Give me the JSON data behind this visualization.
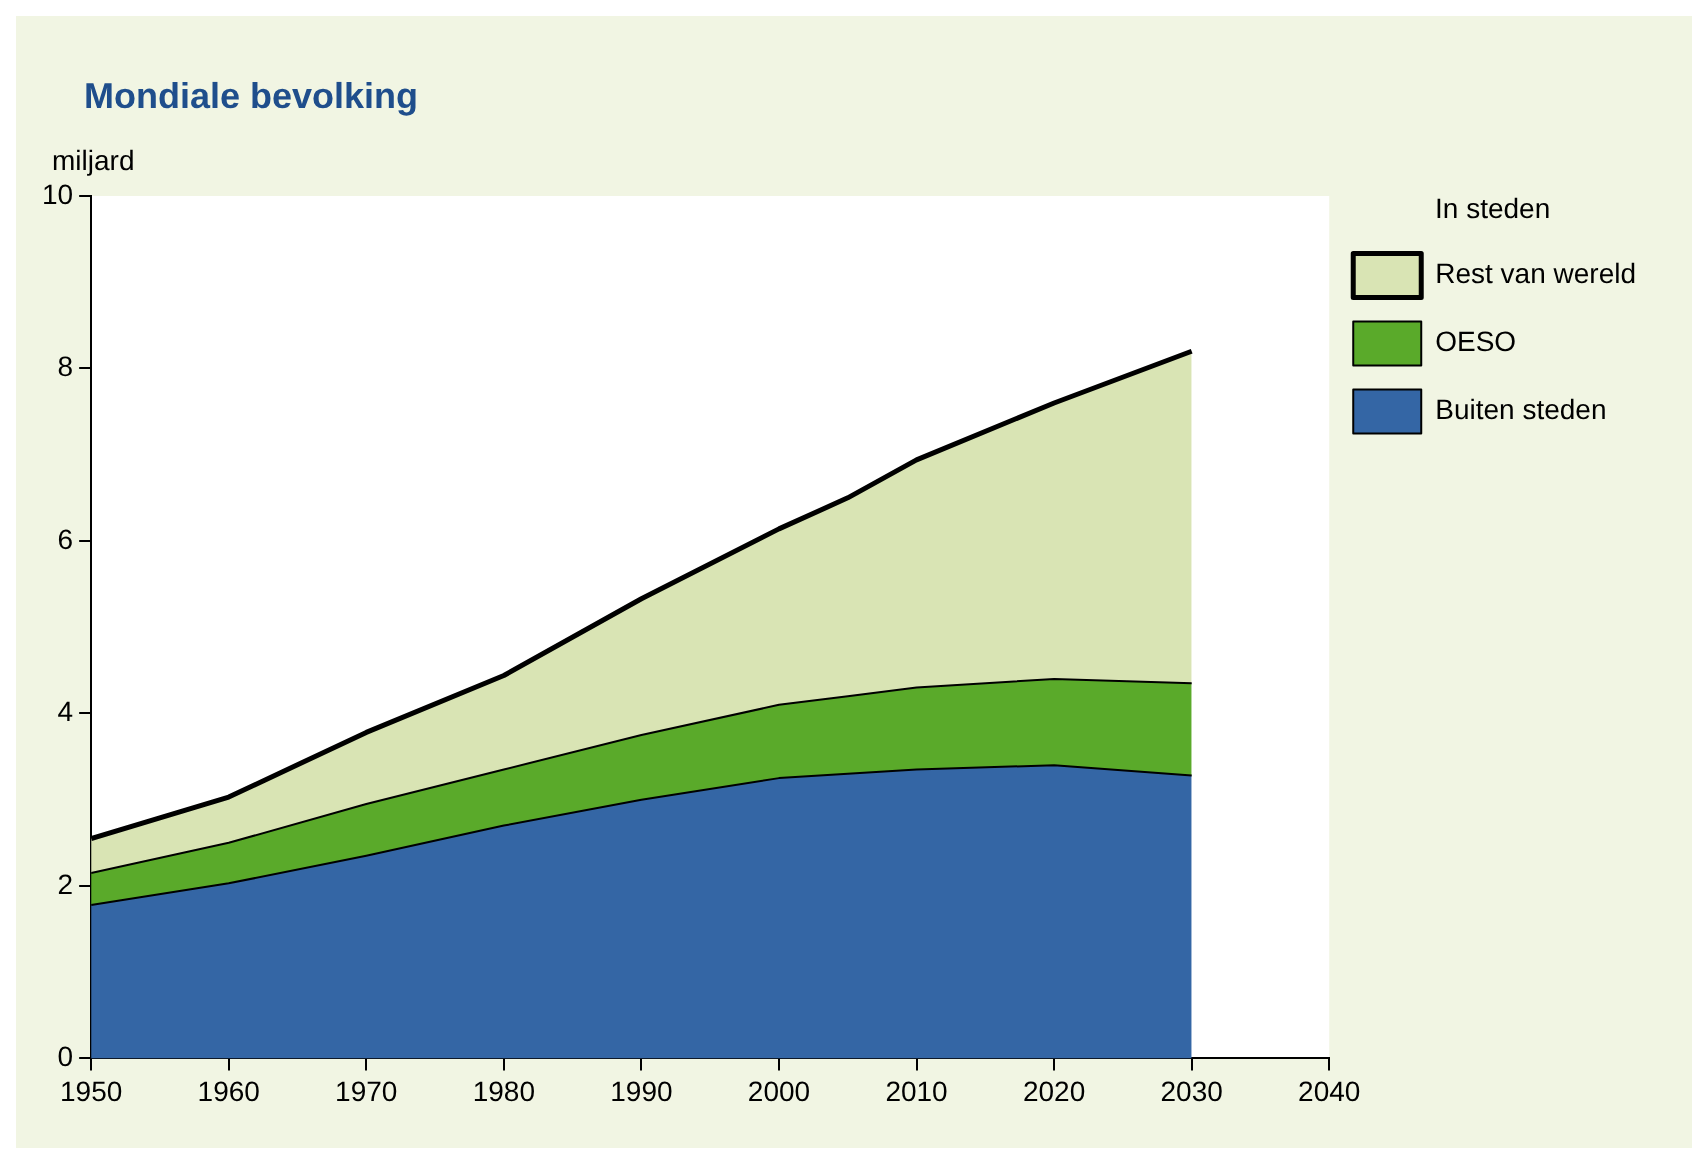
{
  "chart_data": {
    "type": "area",
    "title": "Mondiale bevolking",
    "ylabel": "miljard",
    "legend_title": "In steden",
    "stacked": true,
    "x": [
      1950,
      1960,
      1970,
      1980,
      1990,
      2000,
      2005,
      2010,
      2020,
      2030
    ],
    "series": [
      {
        "name": "Buiten steden",
        "color": "#3466a5",
        "values": [
          1.78,
          2.03,
          2.35,
          2.7,
          3.0,
          3.25,
          3.3,
          3.35,
          3.4,
          3.28
        ]
      },
      {
        "name": "OESO",
        "color": "#5aaa2a",
        "values": [
          0.37,
          0.47,
          0.6,
          0.65,
          0.75,
          0.85,
          0.9,
          0.95,
          1.0,
          1.07
        ]
      },
      {
        "name": "Rest van wereld",
        "color": "#d9e4b4",
        "values": [
          0.4,
          0.53,
          0.83,
          1.09,
          1.58,
          2.04,
          2.3,
          2.64,
          3.2,
          3.85
        ]
      }
    ],
    "xlim": [
      1950,
      2040
    ],
    "xticks": [
      1950,
      1960,
      1970,
      1980,
      1990,
      2000,
      2010,
      2020,
      2030,
      2040
    ],
    "ylim": [
      0,
      10
    ],
    "yticks": [
      0,
      2,
      4,
      6,
      8,
      10
    ],
    "grid": false,
    "legend": "right"
  }
}
